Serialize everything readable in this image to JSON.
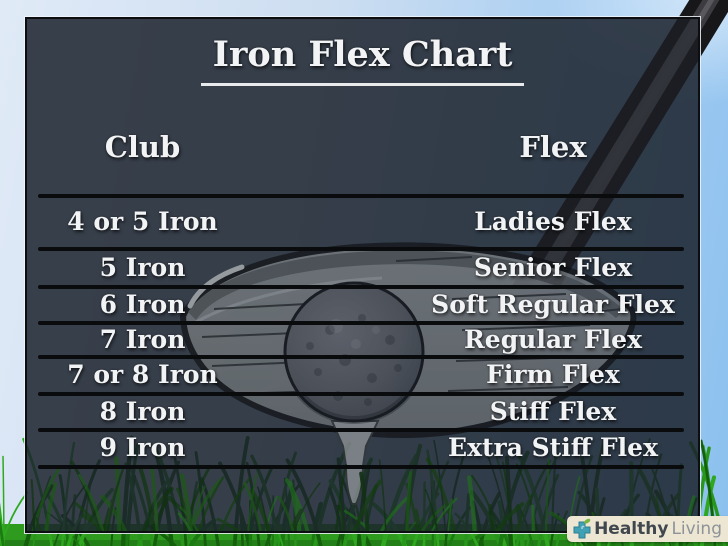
{
  "title": "Iron Flex Chart",
  "table": {
    "club_header": "Club",
    "flex_header": "Flex",
    "rows": [
      {
        "club": "4 or 5 Iron",
        "flex": "Ladies Flex"
      },
      {
        "club": "5 Iron",
        "flex": "Senior Flex"
      },
      {
        "club": "6 Iron",
        "flex": "Soft Regular Flex"
      },
      {
        "club": "7 Iron",
        "flex": "Regular Flex"
      },
      {
        "club": "7 or 8 Iron",
        "flex": "Firm Flex"
      },
      {
        "club": "8 Iron",
        "flex": "Stiff Flex"
      },
      {
        "club": "9 Iron",
        "flex": "Extra Stiff Flex"
      }
    ]
  },
  "chart_data": {
    "type": "table",
    "title": "Iron Flex Chart",
    "columns": [
      "Club",
      "Flex"
    ],
    "rows": [
      [
        "4 or 5 Iron",
        "Ladies Flex"
      ],
      [
        "5 Iron",
        "Senior Flex"
      ],
      [
        "6 Iron",
        "Soft Regular Flex"
      ],
      [
        "7 Iron",
        "Regular Flex"
      ],
      [
        "7 or 8 Iron",
        "Firm Flex"
      ],
      [
        "8 Iron",
        "Stiff Flex"
      ],
      [
        "9 Iron",
        "Extra Stiff Flex"
      ]
    ]
  },
  "branding": {
    "name_bold": "Healthy",
    "name_light": "Living"
  },
  "scene": {
    "description": "golf driver head with ball on tee in grass under blue sky",
    "icons": [
      "golf-shaft-icon",
      "golf-driver-head-icon",
      "golf-ball-icon",
      "golf-tee-icon",
      "grass-icon",
      "cross-leaf-icon"
    ]
  },
  "colors": {
    "panel": "#353d49",
    "sky_left": "#e0eaf7",
    "sky_right": "#8bc0ee",
    "grass_bright": "#2f9b1e",
    "text": "#f2f3f4",
    "divider": "#0a0b0d",
    "logo_bg": "#ece6d3",
    "logo_cross": "#41a1b4",
    "logo_leaf": "#7ab53f"
  }
}
